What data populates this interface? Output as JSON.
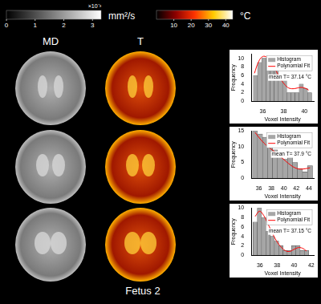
{
  "figure_label": "Fetus 2",
  "columns": [
    "MD",
    "T"
  ],
  "colorbars": [
    {
      "name": "MD",
      "unit": "mm²/s",
      "multiplier": "×10⁻³",
      "colors": [
        "#000000",
        "#ffffff"
      ],
      "lim": [
        0,
        3.3
      ],
      "ticks": [
        0,
        1,
        2,
        3
      ]
    },
    {
      "name": "T",
      "unit": "°C",
      "colors": [
        "#000000",
        "#8b0000",
        "#ff3300",
        "#ffcc00",
        "#ffffff"
      ],
      "lim": [
        0,
        44
      ],
      "ticks": [
        10,
        20,
        30,
        40
      ]
    }
  ],
  "chart_data": [
    {
      "type": "histogram",
      "xlabel": "Voxel Intensity",
      "ylabel": "Frequency",
      "annotation": "mean T= 37.14 °C",
      "xlim": [
        34.9,
        40.9
      ],
      "xticks": [
        36,
        38,
        40
      ],
      "ylim": [
        0,
        11
      ],
      "yticks": [
        0,
        2,
        4,
        6,
        8,
        10
      ],
      "grid": false,
      "legend": "top-right",
      "series": [
        {
          "name": "Histogram",
          "type": "bar",
          "color": "#a6a6a6",
          "bins": [
            35.1,
            35.5,
            35.9,
            36.3,
            36.7,
            37.1,
            37.5,
            37.9,
            38.3,
            38.7,
            39.1,
            39.5,
            39.9,
            40.3,
            40.7
          ],
          "counts": [
            6,
            9,
            10,
            10,
            8,
            7,
            5,
            5,
            2,
            2,
            2,
            4,
            3,
            2
          ]
        },
        {
          "name": "Polynomial Fit",
          "type": "line",
          "color": "#ff0000",
          "x": [
            35.2,
            35.6,
            36.0,
            36.4,
            36.8,
            37.2,
            37.6,
            38.0,
            38.4,
            38.8,
            39.2,
            39.6,
            40.0,
            40.4
          ],
          "values": [
            6.5,
            9.2,
            10.4,
            10.2,
            9.0,
            7.4,
            5.6,
            4.2,
            3.2,
            2.9,
            3.0,
            3.2,
            3.1,
            2.6
          ]
        }
      ]
    },
    {
      "type": "histogram",
      "xlabel": "Voxel Intensity",
      "ylabel": "Frequency",
      "annotation": "mean T= 37.9 °C",
      "xlim": [
        34.8,
        44.8
      ],
      "xticks": [
        36,
        38,
        40,
        42,
        44
      ],
      "ylim": [
        0,
        15
      ],
      "yticks": [
        0,
        5,
        10,
        15
      ],
      "grid": false,
      "legend": "top-right",
      "series": [
        {
          "name": "Histogram",
          "type": "bar",
          "color": "#a6a6a6",
          "bins": [
            35.0,
            35.8,
            36.6,
            37.4,
            38.2,
            39.0,
            39.8,
            40.6,
            41.4,
            42.2,
            43.0,
            43.8,
            44.6
          ],
          "counts": [
            15,
            14,
            13,
            10,
            9,
            8,
            6,
            7,
            5,
            3,
            2,
            4
          ]
        },
        {
          "name": "Polynomial Fit",
          "type": "line",
          "color": "#ff0000",
          "x": [
            35.4,
            36.2,
            37.0,
            37.8,
            38.6,
            39.4,
            40.2,
            41.0,
            41.8,
            42.6,
            43.4,
            44.2
          ],
          "values": [
            14.5,
            12.5,
            10.8,
            9.5,
            8.3,
            7.0,
            5.6,
            4.3,
            3.3,
            2.9,
            3.0,
            3.3
          ]
        }
      ]
    },
    {
      "type": "histogram",
      "xlabel": "Voxel Intensity",
      "ylabel": "Frequency",
      "annotation": "mean T= 37.15 °C",
      "xlim": [
        35,
        42.3
      ],
      "xticks": [
        36,
        38,
        40,
        42
      ],
      "ylim": [
        0,
        10
      ],
      "yticks": [
        0,
        2,
        4,
        6,
        8,
        10
      ],
      "grid": false,
      "legend": "top-right",
      "series": [
        {
          "name": "Histogram",
          "type": "bar",
          "color": "#a6a6a6",
          "bins": [
            35.2,
            35.7,
            36.2,
            36.7,
            37.2,
            37.7,
            38.2,
            38.7,
            39.2,
            39.7,
            40.2,
            40.7,
            41.2,
            41.7
          ],
          "counts": [
            7,
            10,
            8,
            5,
            4,
            3,
            2,
            1,
            1,
            2,
            2,
            1,
            1
          ]
        },
        {
          "name": "Polynomial Fit",
          "type": "line",
          "color": "#ff0000",
          "x": [
            35.45,
            35.95,
            36.45,
            36.95,
            37.45,
            37.95,
            38.45,
            38.95,
            39.45,
            39.95,
            40.45,
            40.95,
            41.45
          ],
          "values": [
            8.2,
            9.3,
            8.4,
            6.6,
            4.7,
            3.0,
            1.8,
            1.0,
            0.8,
            1.2,
            1.6,
            1.5,
            0.9
          ]
        }
      ]
    }
  ]
}
